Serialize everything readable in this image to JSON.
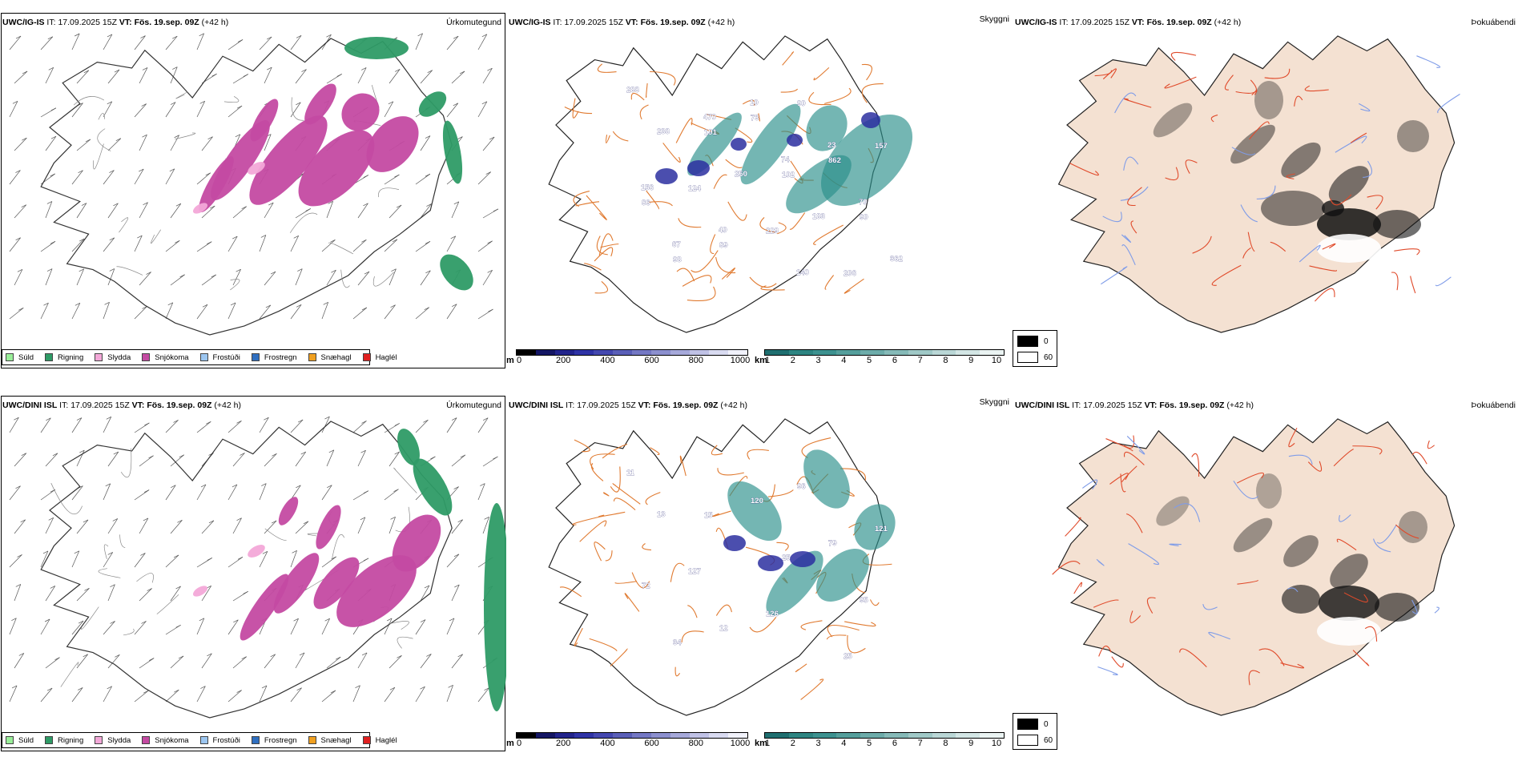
{
  "colors": {
    "suld": "#99ee99",
    "rigning": "#2e9b66",
    "slydda": "#f3a8d8",
    "snjokoma": "#c44aa2",
    "frostudi": "#9cc6f0",
    "frostregn": "#2f6fc0",
    "snaehagl": "#f0a020",
    "haglel": "#e02020",
    "land": "#f4e1d2",
    "road": "#e07a30",
    "roadRed": "#e04a2a",
    "river": "#7f9ce8",
    "cloudTeal": "#2a8f8a",
    "cloudBlue": "#2c2fa0"
  },
  "rows": [
    {
      "p0": {
        "model": "UWC/IG-IS",
        "it_label": "IT:",
        "it_value": "17.09.2025 15Z",
        "vt_label": "VT:",
        "vt_value": "Fös. 19.sep. 09Z",
        "lead": "(+42 h)",
        "title": "Úrkomutegund"
      },
      "p1": {
        "model": "UWC/IG-IS",
        "it_label": "IT:",
        "it_value": "17.09.2025 15Z",
        "vt_label": "VT:",
        "vt_value": "Fös. 19.sep. 09Z",
        "lead": "(+42 h)",
        "title": "Skyggni",
        "labels": [
          "288",
          "191",
          "102",
          "90",
          "98",
          "73",
          "862",
          "86",
          "89",
          "90",
          "157",
          "124",
          "229",
          "206",
          "238",
          "250",
          "183",
          "362",
          "470",
          "74",
          "70",
          "67",
          "10",
          "23",
          "156",
          "40",
          "140"
        ]
      },
      "p2": {
        "model": "UWC/IG-IS",
        "it_label": "IT:",
        "it_value": "17.09.2025 15Z",
        "vt_label": "VT:",
        "vt_value": "Fös. 19.sep. 09Z",
        "lead": "(+42 h)",
        "title": "Þokuábendi"
      }
    },
    {
      "p0": {
        "model": "UWC/DINI ISL",
        "it_label": "IT:",
        "it_value": "17.09.2025 15Z",
        "vt_label": "VT:",
        "vt_value": "Fös. 19.sep. 09Z",
        "lead": "(+42 h)",
        "title": "Úrkomutegund"
      },
      "p1": {
        "model": "UWC/DINI ISL",
        "it_label": "IT:",
        "it_value": "17.09.2025 15Z",
        "vt_label": "VT:",
        "vt_value": "Fös. 19.sep. 09Z",
        "lead": "(+42 h)",
        "title": "Skyggni",
        "labels": [
          "11",
          "15",
          "25",
          "95",
          "34",
          "120",
          "79",
          "72",
          "12",
          "96",
          "121",
          "127",
          "126",
          "25",
          "13"
        ]
      },
      "p2": {
        "model": "UWC/DINI ISL",
        "it_label": "IT:",
        "it_value": "17.09.2025 15Z",
        "vt_label": "VT:",
        "vt_value": "Fös. 19.sep. 09Z",
        "lead": "(+42 h)",
        "title": "Þokuábendi"
      }
    }
  ],
  "precip_legend": [
    "Súld",
    "Rigning",
    "Slydda",
    "Snjókoma",
    "Frostúði",
    "Frostregn",
    "Snæhagl",
    "Haglél"
  ],
  "m_bar": {
    "unit": "m",
    "ticks": [
      "0",
      "200",
      "400",
      "600",
      "800",
      "1000"
    ],
    "colors": [
      "#000000",
      "#141664",
      "#22248c",
      "#2f33a6",
      "#4448b0",
      "#5a5fb8",
      "#7478c4",
      "#8c90cf",
      "#a6a9da",
      "#c0c2e6",
      "#d9dbf1",
      "#f1f2fb"
    ]
  },
  "km_bar": {
    "unit": "km",
    "ticks": [
      "1",
      "2",
      "3",
      "4",
      "5",
      "6",
      "7",
      "8",
      "9",
      "10"
    ],
    "colors": [
      "#1f6f70",
      "#2e8582",
      "#3d9290",
      "#559f9c",
      "#6dacaa",
      "#86bab8",
      "#a0c9c7",
      "#bad7d6",
      "#d3e6e5",
      "#ebf4f3"
    ]
  },
  "fog_legend": [
    "0",
    "60"
  ]
}
